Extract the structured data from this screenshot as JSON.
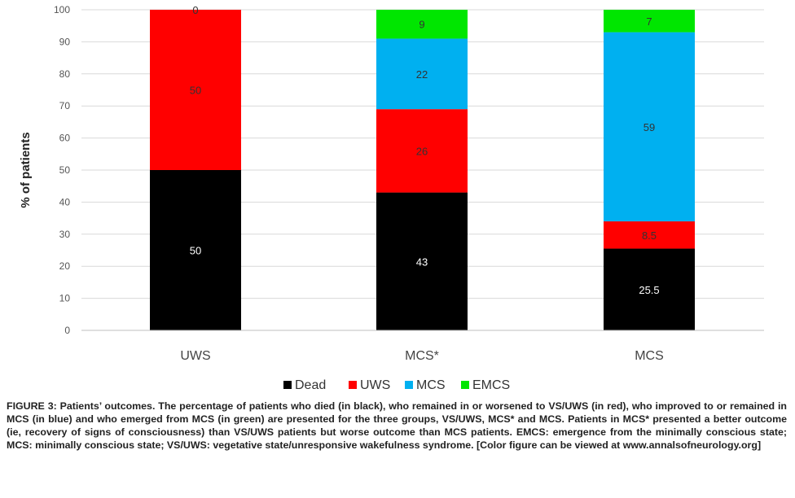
{
  "chart_data": {
    "type": "bar",
    "stacked": true,
    "categories": [
      "UWS",
      "MCS*",
      "MCS"
    ],
    "series": [
      {
        "name": "Dead",
        "color": "#000000",
        "values": [
          50,
          43,
          25.5
        ],
        "labels": [
          "50",
          "43",
          "25.5"
        ],
        "label_color": "#ffffff"
      },
      {
        "name": "UWS",
        "color": "#ff0000",
        "values": [
          50,
          26,
          8.5
        ],
        "labels": [
          "50",
          "26",
          "8.5"
        ],
        "label_color": "#333333"
      },
      {
        "name": "MCS",
        "color": "#00b0f0",
        "values": [
          0,
          22,
          59
        ],
        "labels": [
          "0",
          "22",
          "59"
        ],
        "label_color": "#333333"
      },
      {
        "name": "EMCS",
        "color": "#00e600",
        "values": [
          0,
          9,
          7
        ],
        "labels": [
          "",
          "9",
          "7"
        ],
        "label_color": "#333333"
      }
    ],
    "ylabel": "% of patients",
    "xlabel": "",
    "ylim": [
      0,
      100
    ],
    "yticks": [
      0,
      10,
      20,
      30,
      40,
      50,
      60,
      70,
      80,
      90,
      100
    ],
    "grid": true,
    "legend": "bottom"
  },
  "caption": "FIGURE 3: Patients’ outcomes. The percentage of patients who died (in black), who remained in or worsened to VS/UWS (in red), who improved to or remained in MCS (in blue) and who emerged from MCS (in green) are presented for the three groups, VS/UWS, MCS* and MCS. Patients in MCS* presented a better outcome (ie, recovery of signs of consciousness) than VS/UWS patients but worse outcome than MCS patients. EMCS: emergence from the minimally conscious state; MCS: minimally conscious state; VS/UWS: vegetative state/unresponsive wakefulness syndrome. [Color figure can be viewed at www.annalsofneurology.org]"
}
